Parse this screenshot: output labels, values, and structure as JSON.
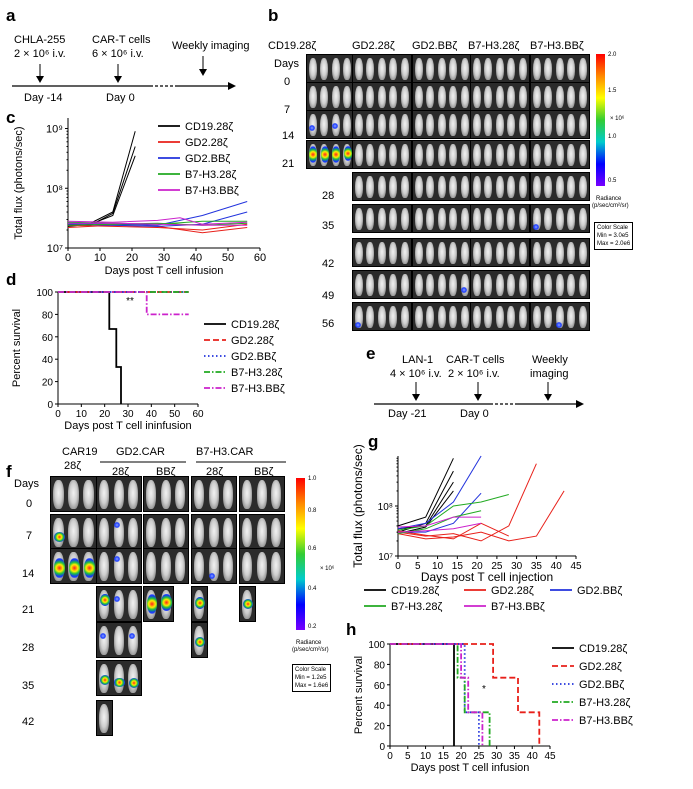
{
  "panel_labels": {
    "a": "a",
    "b": "b",
    "c": "c",
    "d": "d",
    "e": "e",
    "f": "f",
    "g": "g",
    "h": "h"
  },
  "panel_a": {
    "tumor": "CHLA-255",
    "tumor_dose": "2 × 10⁶ i.v.",
    "cart": "CAR-T cells",
    "cart_dose": "6 × 10⁶ i.v.",
    "imaging": "Weekly imaging",
    "day1": "Day -14",
    "day2": "Day 0"
  },
  "panel_b": {
    "groups": [
      "CD19.28ζ",
      "GD2.28ζ",
      "GD2.BBζ",
      "B7-H3.28ζ",
      "B7-H3.BBζ"
    ],
    "days_header": "Days",
    "days": [
      "0",
      "7",
      "14",
      "21",
      "28",
      "35",
      "42",
      "49",
      "56"
    ],
    "colorbar_ticks": [
      "2.0",
      "1.5",
      "1.0",
      "0.5"
    ],
    "colorbar_unit": "× 10⁶",
    "radiance_label": "Radiance",
    "radiance_unit": "(p/sec/cm²/sr)",
    "scale_line1": "Color Scale",
    "scale_line2": "Min = 3.0e5",
    "scale_line3": "Max = 2.0e6"
  },
  "panel_e": {
    "tumor": "LAN-1",
    "tumor_dose": "4 × 10⁶ i.v.",
    "cart": "CAR-T cells",
    "cart_dose": "2 × 10⁶ i.v.",
    "imaging1": "Weekly",
    "imaging2": "imaging",
    "day1": "Day -21",
    "day2": "Day 0"
  },
  "panel_f": {
    "groups": [
      "CAR19",
      "GD2.CAR",
      "B7-H3.CAR"
    ],
    "sub_car19": "28ζ",
    "subs": [
      "28ζ",
      "BBζ",
      "28ζ",
      "BBζ"
    ],
    "days_header": "Days",
    "days": [
      "0",
      "7",
      "14",
      "21",
      "28",
      "35",
      "42"
    ],
    "colorbar_ticks": [
      "1.0",
      "0.8",
      "0.6",
      "0.4",
      "0.2"
    ],
    "colorbar_unit": "× 10⁶",
    "radiance_label": "Radiance",
    "radiance_unit": "(p/sec/cm²/sr)",
    "scale_line1": "Color Scale",
    "scale_line2": "Min = 1.2e5",
    "scale_line3": "Max = 1.6e6"
  },
  "colors": {
    "CD19.28ζ": "#000000",
    "GD2.28ζ": "#e8201a",
    "GD2.BBζ": "#2233dd",
    "B7-H3.28ζ": "#22aa22",
    "B7-H3.BBζ": "#cc22cc"
  },
  "chart_data": [
    {
      "id": "c",
      "type": "line",
      "ylabel": "Total flux (photons/sec)",
      "xlabel": "Days post T cell infusion",
      "xlim": [
        0,
        60
      ],
      "xticks": [
        "0",
        "10",
        "20",
        "30",
        "40",
        "50",
        "60"
      ],
      "yscale": "log",
      "ylim": [
        10000000,
        1500000000
      ],
      "yticks": [
        "10⁷",
        "10⁸",
        "10⁹"
      ],
      "legend": [
        "CD19.28ζ",
        "GD2.28ζ",
        "GD2.BBζ",
        "B7-H3.28ζ",
        "B7-H3.BBζ"
      ],
      "series": [
        {
          "name": "CD19.28ζ",
          "lines": [
            [
              [
                0,
                25000000
              ],
              [
                7,
                26000000
              ],
              [
                14,
                40000000
              ],
              [
                21,
                900000000
              ]
            ],
            [
              [
                0,
                24000000
              ],
              [
                7,
                24000000
              ],
              [
                14,
                38000000
              ],
              [
                21,
                500000000
              ]
            ],
            [
              [
                0,
                23000000
              ],
              [
                7,
                25000000
              ],
              [
                14,
                35000000
              ],
              [
                21,
                350000000
              ]
            ]
          ]
        },
        {
          "name": "GD2.28ζ",
          "lines": [
            [
              [
                0,
                24000000
              ],
              [
                14,
                23000000
              ],
              [
                28,
                22000000
              ],
              [
                42,
                20000000
              ],
              [
                56,
                25000000
              ]
            ],
            [
              [
                0,
                22000000
              ],
              [
                14,
                24000000
              ],
              [
                28,
                23000000
              ],
              [
                42,
                18000000
              ],
              [
                56,
                22000000
              ]
            ]
          ]
        },
        {
          "name": "GD2.BBζ",
          "lines": [
            [
              [
                0,
                26000000
              ],
              [
                14,
                25000000
              ],
              [
                28,
                24000000
              ],
              [
                42,
                35000000
              ],
              [
                56,
                60000000
              ]
            ],
            [
              [
                0,
                25000000
              ],
              [
                14,
                24000000
              ],
              [
                28,
                23000000
              ],
              [
                42,
                25000000
              ],
              [
                56,
                40000000
              ]
            ]
          ]
        },
        {
          "name": "B7-H3.28ζ",
          "lines": [
            [
              [
                0,
                27000000
              ],
              [
                14,
                26000000
              ],
              [
                28,
                25000000
              ],
              [
                42,
                28000000
              ],
              [
                56,
                28000000
              ]
            ],
            [
              [
                0,
                24000000
              ],
              [
                14,
                25000000
              ],
              [
                28,
                26000000
              ],
              [
                42,
                24000000
              ],
              [
                56,
                26000000
              ]
            ]
          ]
        },
        {
          "name": "B7-H3.BBζ",
          "lines": [
            [
              [
                0,
                28000000
              ],
              [
                14,
                27000000
              ],
              [
                28,
                29000000
              ],
              [
                35,
                32000000
              ],
              [
                42,
                25000000
              ],
              [
                56,
                27000000
              ]
            ],
            [
              [
                0,
                26000000
              ],
              [
                14,
                26000000
              ],
              [
                28,
                25000000
              ],
              [
                42,
                24000000
              ],
              [
                56,
                24000000
              ]
            ]
          ]
        }
      ]
    },
    {
      "id": "d",
      "type": "line",
      "ylabel": "Percent survival",
      "xlabel": "Days post T cell ininfusion",
      "xlim": [
        0,
        60
      ],
      "xticks": [
        "0",
        "10",
        "20",
        "30",
        "40",
        "50",
        "60"
      ],
      "ylim": [
        0,
        100
      ],
      "yticks": [
        "0",
        "20",
        "40",
        "60",
        "80",
        "100"
      ],
      "annotation": "**",
      "legend": [
        "CD19.28ζ",
        "GD2.28ζ",
        "GD2.BBζ",
        "B7-H3.28ζ",
        "B7-H3.BBζ"
      ],
      "series": [
        {
          "name": "CD19.28ζ",
          "style": "solid",
          "points": [
            [
              0,
              100
            ],
            [
              22,
              100
            ],
            [
              22,
              67
            ],
            [
              25,
              67
            ],
            [
              25,
              33
            ],
            [
              27,
              33
            ],
            [
              27,
              0
            ]
          ]
        },
        {
          "name": "GD2.28ζ",
          "style": "dash",
          "points": [
            [
              0,
              100
            ],
            [
              56,
              100
            ]
          ]
        },
        {
          "name": "GD2.BBζ",
          "style": "dot",
          "points": [
            [
              0,
              100
            ],
            [
              56,
              100
            ]
          ]
        },
        {
          "name": "B7-H3.28ζ",
          "style": "dashdot",
          "points": [
            [
              0,
              100
            ],
            [
              56,
              100
            ]
          ]
        },
        {
          "name": "B7-H3.BBζ",
          "style": "dashdot",
          "points": [
            [
              0,
              100
            ],
            [
              38,
              100
            ],
            [
              38,
              80
            ],
            [
              56,
              80
            ]
          ]
        }
      ]
    },
    {
      "id": "g",
      "type": "line",
      "ylabel": "Total flux (photons/sec)",
      "xlabel": "Days post T cell injection",
      "xlim": [
        0,
        45
      ],
      "xticks": [
        "0",
        "5",
        "10",
        "15",
        "20",
        "25",
        "30",
        "35",
        "40",
        "45"
      ],
      "yscale": "log",
      "ylim": [
        10000000,
        1000000000
      ],
      "yticks": [
        "10⁷",
        "10⁸"
      ],
      "legend": [
        "CD19.28ζ",
        "GD2.28ζ",
        "GD2.BBζ",
        "B7-H3.28ζ",
        "B7-H3.BBζ"
      ],
      "series": [
        {
          "name": "CD19.28ζ",
          "lines": [
            [
              [
                0,
                40000000
              ],
              [
                7,
                60000000
              ],
              [
                14,
                900000000
              ]
            ],
            [
              [
                0,
                30000000
              ],
              [
                7,
                45000000
              ],
              [
                14,
                500000000
              ]
            ],
            [
              [
                0,
                35000000
              ],
              [
                7,
                40000000
              ],
              [
                14,
                300000000
              ]
            ],
            [
              [
                0,
                28000000
              ],
              [
                7,
                38000000
              ],
              [
                14,
                200000000
              ]
            ]
          ]
        },
        {
          "name": "GD2.28ζ",
          "lines": [
            [
              [
                0,
                30000000
              ],
              [
                7,
                25000000
              ],
              [
                14,
                28000000
              ],
              [
                21,
                20000000
              ],
              [
                28,
                40000000
              ],
              [
                35,
                700000000
              ]
            ],
            [
              [
                0,
                28000000
              ],
              [
                7,
                22000000
              ],
              [
                14,
                24000000
              ],
              [
                21,
                30000000
              ],
              [
                28,
                20000000
              ],
              [
                35,
                25000000
              ],
              [
                42,
                200000000
              ]
            ],
            [
              [
                0,
                32000000
              ],
              [
                7,
                26000000
              ],
              [
                14,
                22000000
              ],
              [
                21,
                45000000
              ],
              [
                28,
                25000000
              ]
            ]
          ]
        },
        {
          "name": "GD2.BBζ",
          "lines": [
            [
              [
                0,
                35000000
              ],
              [
                7,
                45000000
              ],
              [
                14,
                120000000
              ],
              [
                21,
                1000000000
              ]
            ],
            [
              [
                0,
                30000000
              ],
              [
                7,
                30000000
              ],
              [
                14,
                45000000
              ],
              [
                21,
                180000000
              ]
            ]
          ]
        },
        {
          "name": "B7-H3.28ζ",
          "lines": [
            [
              [
                0,
                33000000
              ],
              [
                7,
                40000000
              ],
              [
                14,
                100000000
              ],
              [
                21,
                120000000
              ],
              [
                28,
                170000000
              ]
            ],
            [
              [
                0,
                28000000
              ],
              [
                7,
                35000000
              ],
              [
                14,
                60000000
              ],
              [
                21,
                80000000
              ]
            ]
          ]
        },
        {
          "name": "B7-H3.BBζ",
          "lines": [
            [
              [
                0,
                38000000
              ],
              [
                7,
                40000000
              ],
              [
                14,
                60000000
              ],
              [
                21,
                60000000
              ]
            ],
            [
              [
                0,
                30000000
              ],
              [
                7,
                32000000
              ],
              [
                14,
                35000000
              ],
              [
                21,
                45000000
              ]
            ]
          ]
        }
      ]
    },
    {
      "id": "h",
      "type": "line",
      "ylabel": "Percent survival",
      "xlabel": "Days post T cell infusion",
      "xlim": [
        0,
        45
      ],
      "xticks": [
        "0",
        "5",
        "10",
        "15",
        "20",
        "25",
        "30",
        "35",
        "40",
        "45"
      ],
      "ylim": [
        0,
        100
      ],
      "yticks": [
        "0",
        "20",
        "40",
        "60",
        "80",
        "100"
      ],
      "annotation": "*",
      "legend": [
        "CD19.28ζ",
        "GD2.28ζ",
        "GD2.BBζ",
        "B7-H3.28ζ",
        "B7-H3.BBζ"
      ],
      "series": [
        {
          "name": "CD19.28ζ",
          "style": "solid",
          "points": [
            [
              0,
              100
            ],
            [
              18,
              100
            ],
            [
              18,
              0
            ]
          ]
        },
        {
          "name": "GD2.28ζ",
          "style": "dash",
          "points": [
            [
              0,
              100
            ],
            [
              29,
              100
            ],
            [
              29,
              67
            ],
            [
              36,
              67
            ],
            [
              36,
              33
            ],
            [
              42,
              33
            ],
            [
              42,
              0
            ]
          ]
        },
        {
          "name": "GD2.BBζ",
          "style": "dot",
          "points": [
            [
              0,
              100
            ],
            [
              21,
              100
            ],
            [
              21,
              33
            ],
            [
              25,
              33
            ],
            [
              25,
              0
            ]
          ]
        },
        {
          "name": "B7-H3.28ζ",
          "style": "dashdot",
          "points": [
            [
              0,
              100
            ],
            [
              19,
              100
            ],
            [
              19,
              67
            ],
            [
              21,
              67
            ],
            [
              21,
              33
            ],
            [
              28,
              33
            ],
            [
              28,
              0
            ]
          ]
        },
        {
          "name": "B7-H3.BBζ",
          "style": "dashdot",
          "points": [
            [
              0,
              100
            ],
            [
              20,
              100
            ],
            [
              20,
              67
            ],
            [
              22,
              67
            ],
            [
              22,
              33
            ],
            [
              26,
              33
            ],
            [
              26,
              0
            ]
          ]
        }
      ]
    }
  ]
}
